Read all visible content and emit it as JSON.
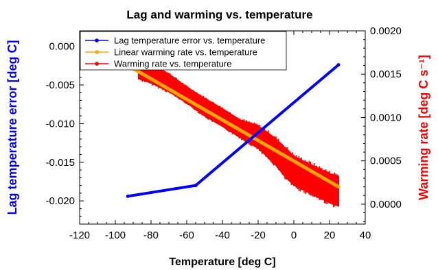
{
  "chart_data": {
    "type": "line",
    "title": "Lag and warming vs. temperature",
    "xlabel": "Temperature [deg C]",
    "ylabel_left": "Lag temperature error [deg C]",
    "ylabel_right": "Warming rate [deg C s⁻¹]",
    "xlim": [
      -120,
      40
    ],
    "ylim_left": [
      -0.023,
      0.002
    ],
    "ylim_right": [
      -0.00023,
      0.002
    ],
    "x_ticks": [
      -120,
      -100,
      -80,
      -60,
      -40,
      -20,
      0,
      20,
      40
    ],
    "y_left_ticks": [
      "0.000",
      "-0.005",
      "-0.010",
      "-0.015",
      "-0.020"
    ],
    "y_left_tick_values": [
      0.0,
      -0.005,
      -0.01,
      -0.015,
      -0.02
    ],
    "y_right_ticks": [
      "0.0020",
      "0.0015",
      "0.0010",
      "0.0005",
      "0.0000"
    ],
    "y_right_tick_values": [
      0.002,
      0.0015,
      0.001,
      0.0005,
      0.0
    ],
    "grid": false,
    "legend_position": "top-left",
    "series": [
      {
        "name": "Lag temperature error vs. temperature",
        "color": "#0000ff",
        "axis": "left",
        "style": "line-markers",
        "x": [
          -93,
          -55,
          25
        ],
        "y": [
          -0.0194,
          -0.018,
          -0.0024
        ]
      },
      {
        "name": "Linear warming rate vs. temperature",
        "color": "#ffa500",
        "axis": "right",
        "style": "line-markers",
        "x": [
          -93,
          25
        ],
        "y": [
          0.0016,
          0.0002
        ]
      },
      {
        "name": "Warming rate vs. temperature",
        "color": "#ff0000",
        "axis": "right",
        "style": "scatter-band",
        "x": [
          -87,
          -80,
          -70,
          -60,
          -50,
          -40,
          -30,
          -20,
          -15,
          -10,
          -5,
          0,
          10,
          20,
          25
        ],
        "y_upper": [
          0.00165,
          0.00162,
          0.0015,
          0.00135,
          0.00122,
          0.0011,
          0.00097,
          0.0009,
          0.00083,
          0.00075,
          0.00065,
          0.00055,
          0.00045,
          0.00035,
          0.00032
        ],
        "y_lower": [
          0.00145,
          0.0014,
          0.0013,
          0.00117,
          0.00102,
          0.0009,
          0.00077,
          0.00065,
          0.00055,
          0.00045,
          0.00032,
          0.00022,
          0.00012,
          2e-05,
          -2e-05
        ]
      }
    ]
  }
}
